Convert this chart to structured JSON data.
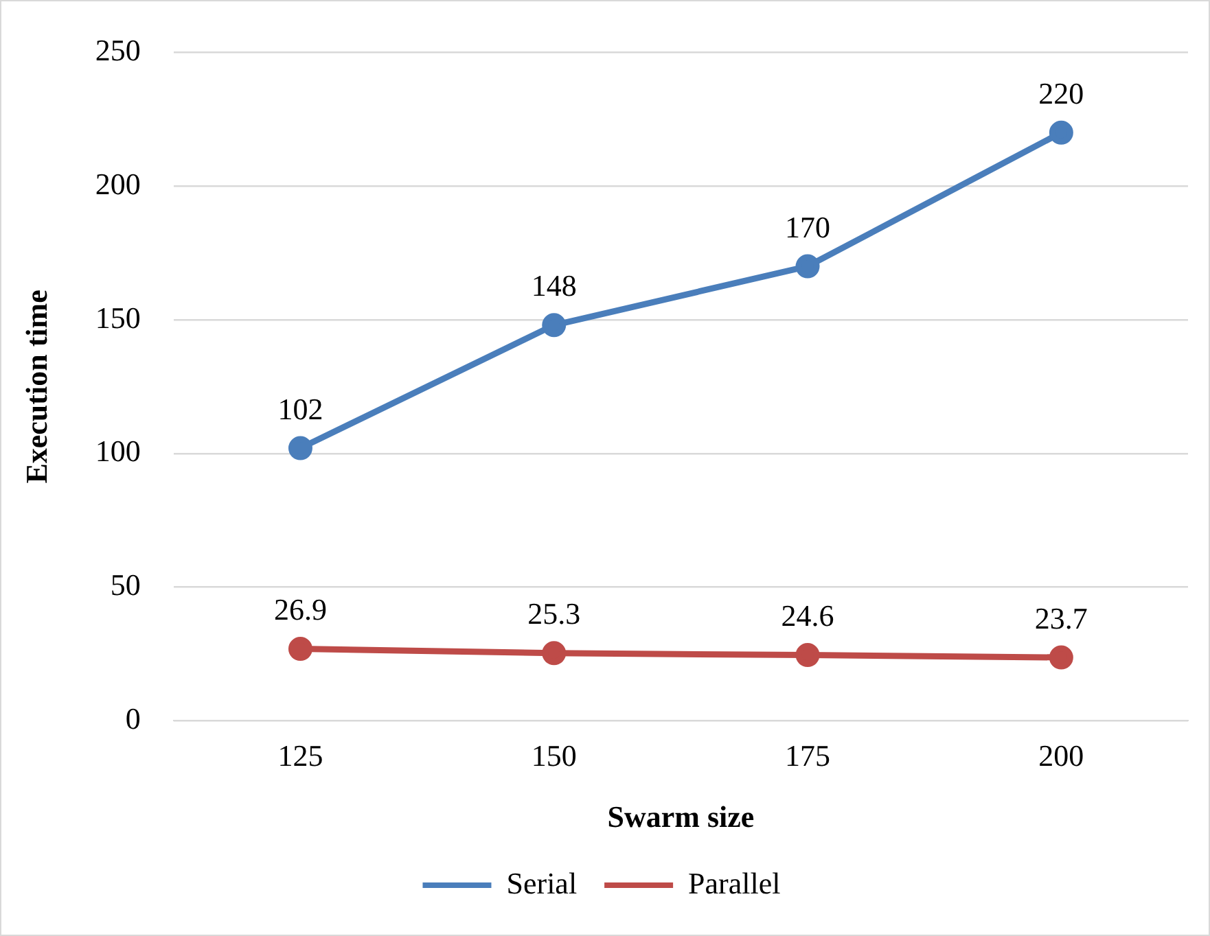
{
  "chart_data": {
    "type": "line",
    "xlabel": "Swarm size",
    "ylabel": "Execution time",
    "categories": [
      "125",
      "150",
      "175",
      "200"
    ],
    "series": [
      {
        "name": "Serial",
        "color": "#4a7ebb",
        "values": [
          102,
          148,
          170,
          220
        ]
      },
      {
        "name": "Parallel",
        "color": "#be4b48",
        "values": [
          26.9,
          25.3,
          24.6,
          23.7
        ]
      }
    ],
    "ylim": [
      0,
      250
    ],
    "yticks": [
      0,
      50,
      100,
      150,
      200,
      250
    ],
    "grid": "y",
    "legend": "bottom",
    "marker": "circle",
    "line_style": "solid",
    "data_labels": true
  }
}
